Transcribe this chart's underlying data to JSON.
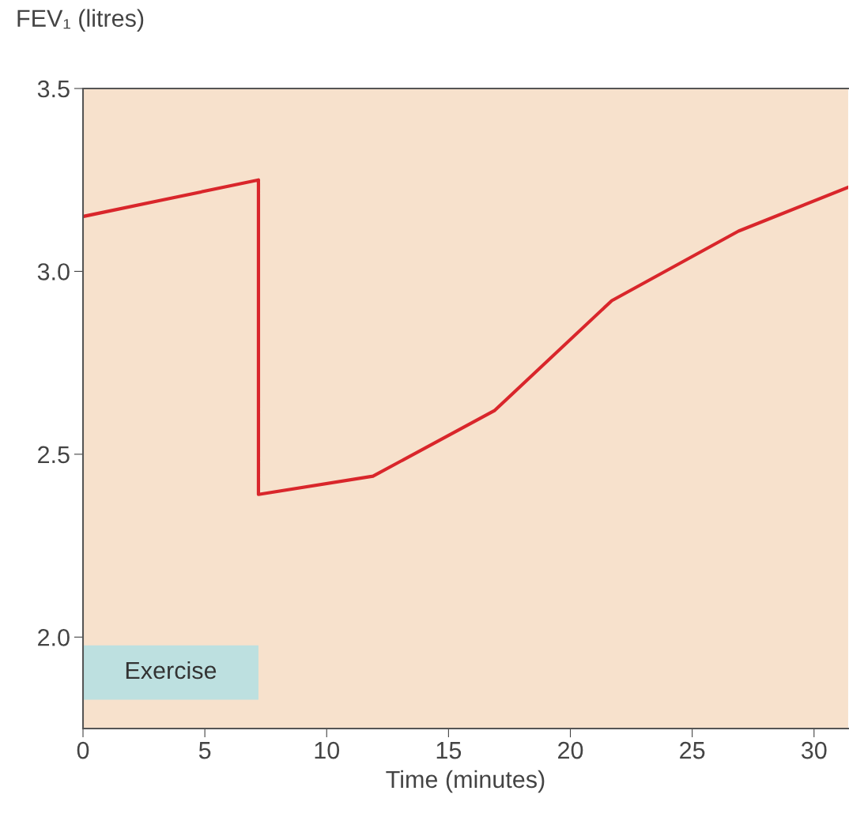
{
  "chart_data": {
    "type": "line",
    "xlabel": "Time (minutes)",
    "ylabel": "FEV₁ (litres)",
    "x": [
      0,
      7.2,
      7.2,
      11.9,
      16.9,
      21.7,
      26.9,
      31.4
    ],
    "series": [
      {
        "color": "#d9262b",
        "values": [
          3.15,
          3.25,
          2.39,
          2.44,
          2.62,
          2.92,
          3.11,
          3.23
        ]
      }
    ],
    "xlim": [
      0,
      31.4
    ],
    "ylim": [
      1.75,
      3.5
    ],
    "xticks": [
      0,
      5,
      10,
      15,
      20,
      25,
      30
    ],
    "yticks": [
      {
        "value": 2,
        "label": "2.0"
      },
      {
        "value": 2.5,
        "label": "2.5"
      },
      {
        "value": 3,
        "label": "3.0"
      },
      {
        "value": 3.5,
        "label": "3.5"
      }
    ],
    "bands": [
      {
        "axis": "x",
        "from": 0,
        "to": 7.2,
        "label": "Exercise",
        "color": "#bde0e0"
      }
    ],
    "grid": false,
    "legend": false,
    "marker": "none",
    "line_style": "solid"
  }
}
